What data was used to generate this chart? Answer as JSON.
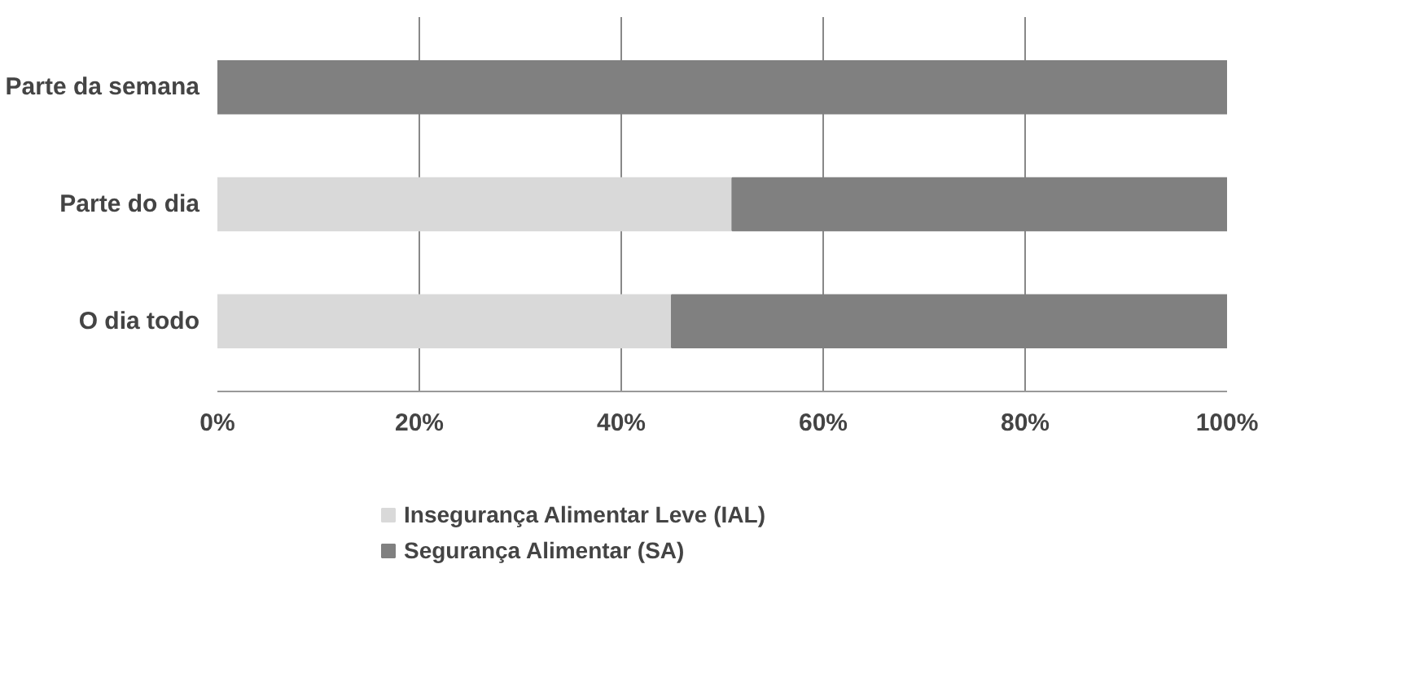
{
  "chart_data": {
    "type": "bar",
    "orientation": "horizontal",
    "stacked": true,
    "categories": [
      "Parte da semana",
      "Parte do dia",
      "O dia todo"
    ],
    "series": [
      {
        "name": "Insegurança Alimentar Leve (IAL)",
        "color": "#d9d9d9",
        "values": [
          0,
          51,
          45
        ]
      },
      {
        "name": "Segurança Alimentar (SA)",
        "color": "#808080",
        "values": [
          100,
          49,
          55
        ]
      }
    ],
    "xlim": [
      0,
      100
    ],
    "xticks": [
      {
        "value": 0,
        "label": "0%"
      },
      {
        "value": 20,
        "label": "20%"
      },
      {
        "value": 40,
        "label": "40%"
      },
      {
        "value": 60,
        "label": "60%"
      },
      {
        "value": 80,
        "label": "80%"
      },
      {
        "value": 100,
        "label": "100%"
      }
    ],
    "grid": "x",
    "legend": "bottom"
  }
}
